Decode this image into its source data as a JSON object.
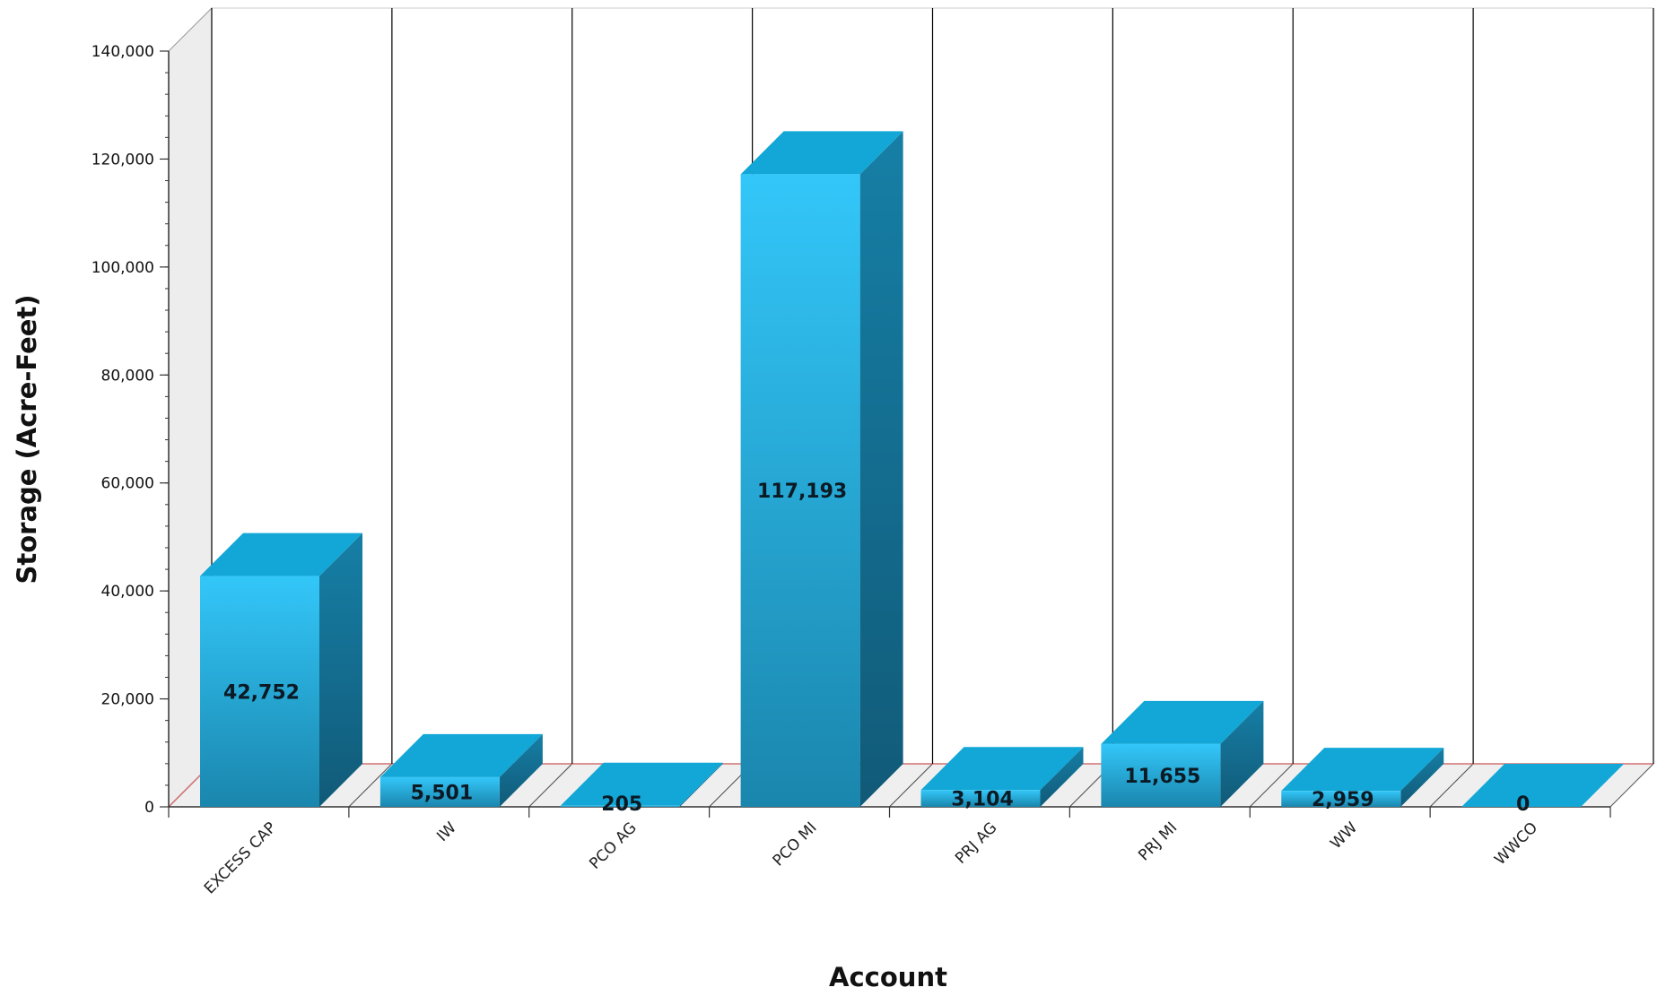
{
  "chart_data": {
    "type": "bar",
    "style": "3d-column",
    "xlabel": "Account",
    "ylabel": "Storage (Acre-Feet)",
    "categories": [
      "EXCESS CAP",
      "IW",
      "PCO AG",
      "PCO MI",
      "PRJ AG",
      "PRJ MI",
      "WW",
      "WWCO"
    ],
    "values": [
      42752,
      5501,
      205,
      117193,
      3104,
      11655,
      2959,
      0
    ],
    "value_labels": [
      "42,752",
      "5,501",
      "205",
      "117,193",
      "3,104",
      "11,655",
      "2,959",
      "0"
    ],
    "ylim": [
      0,
      140000
    ],
    "yticks": [
      0,
      20000,
      40000,
      60000,
      80000,
      100000,
      120000,
      140000
    ],
    "ytick_labels": [
      "0",
      "20,000",
      "40,000",
      "60,000",
      "80,000",
      "100,000",
      "120,000",
      "140,000"
    ],
    "grid": "vertical",
    "legend": "none",
    "colors": {
      "bar_front_top": "#33c7f9",
      "bar_front_bottom": "#1a86ad",
      "bar_side": "#167fa6",
      "bar_side_dark": "#115a78",
      "bar_top": "#12a7d6",
      "floor": "#efefef",
      "wall": "#ededed",
      "grid": "#000000",
      "zero_line": "#d07070"
    }
  }
}
